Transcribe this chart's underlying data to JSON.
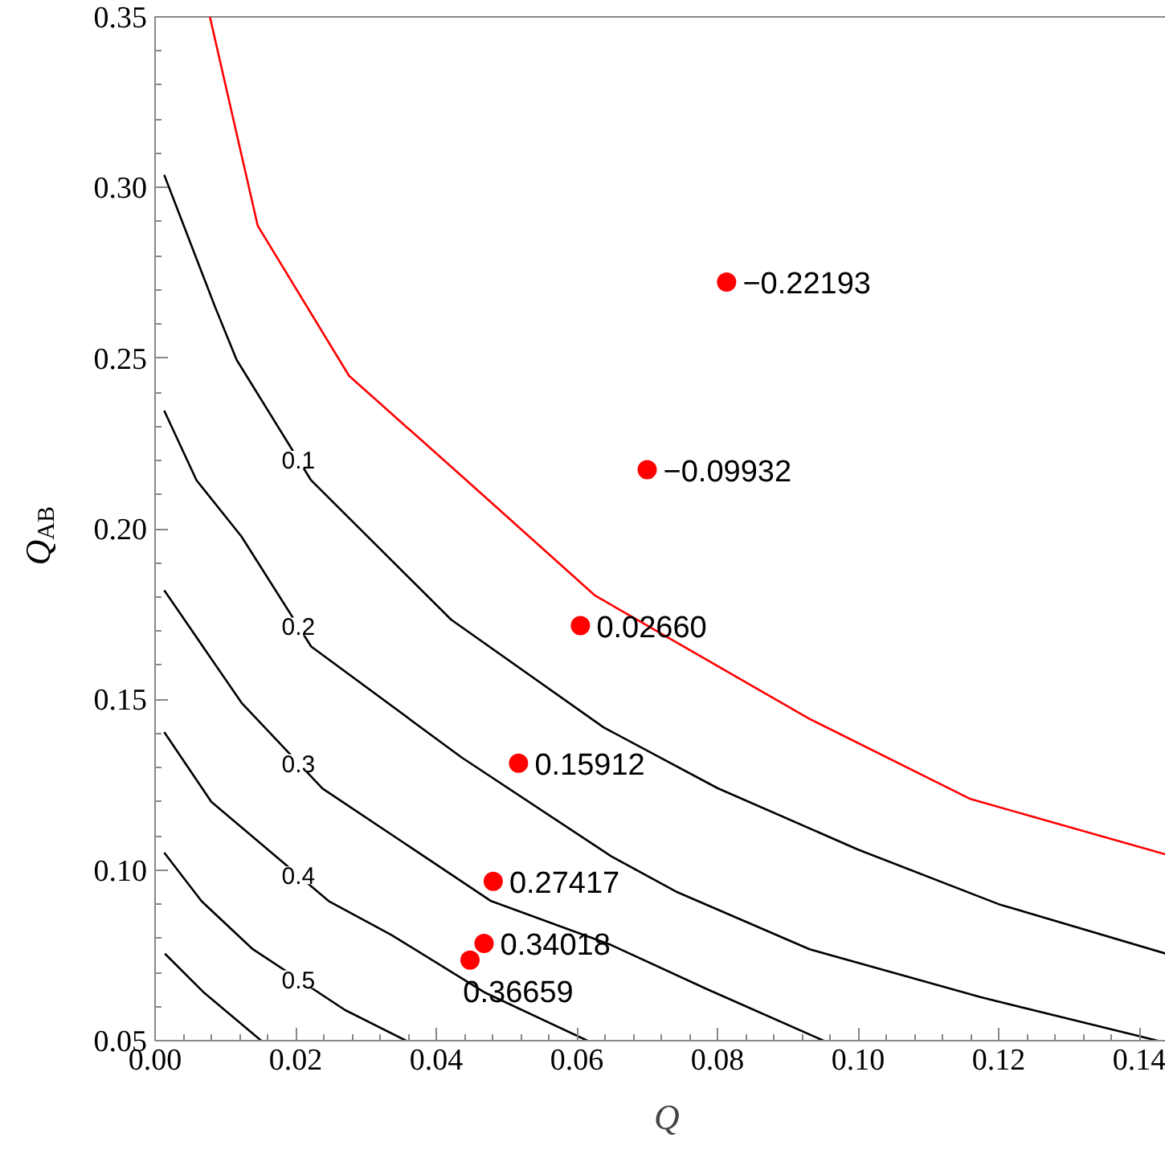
{
  "chart_data": {
    "type": "line",
    "xlabel": "Q",
    "ylabel": "Q$_{AB}$",
    "xlim": [
      0,
      0.1456
    ],
    "ylim": [
      0.05,
      0.35
    ],
    "xticks": [
      {
        "value": 0,
        "label": "0.00"
      },
      {
        "value": 0.02,
        "label": "0.02"
      },
      {
        "value": 0.04,
        "label": "0.04"
      },
      {
        "value": 0.06,
        "label": "0.06"
      },
      {
        "value": 0.08,
        "label": "0.08"
      },
      {
        "value": 0.1,
        "label": "0.10"
      },
      {
        "value": 0.12,
        "label": "0.12"
      },
      {
        "value": 0.14,
        "label": "0.14"
      }
    ],
    "yticks": [
      {
        "value": 0.05,
        "label": "0.05"
      },
      {
        "value": 0.1,
        "label": "0.10"
      },
      {
        "value": 0.15,
        "label": "0.15"
      },
      {
        "value": 0.2,
        "label": "0.20"
      },
      {
        "value": 0.25,
        "label": "0.25"
      },
      {
        "value": 0.3,
        "label": "0.30"
      },
      {
        "value": 0.35,
        "label": "0.35"
      }
    ],
    "series": [
      {
        "color": "#ff0000",
        "x": [
          0.0078,
          0.0146,
          0.0276,
          0.0443,
          0.0626,
          0.0931,
          0.116,
          0.1456
        ],
        "values": [
          0.35,
          0.2888,
          0.2448,
          0.2142,
          0.1804,
          0.1443,
          0.1208,
          0.1035
        ]
      },
      {
        "name": "0.1",
        "color": "#000000",
        "x": [
          0.0013,
          0.0085,
          0.0116,
          0.0222,
          0.0421,
          0.0638,
          0.08,
          0.1,
          0.12,
          0.1456
        ],
        "values": [
          0.3037,
          0.2652,
          0.2495,
          0.2142,
          0.1734,
          0.1418,
          0.124,
          0.106,
          0.09,
          0.0744
        ]
      },
      {
        "name": "0.2",
        "color": "#000000",
        "x": [
          0.0013,
          0.0059,
          0.0123,
          0.0222,
          0.0436,
          0.0649,
          0.0743,
          0.0931,
          0.1175,
          0.1426
        ],
        "values": [
          0.2346,
          0.2142,
          0.1977,
          0.1655,
          0.133,
          0.104,
          0.0935,
          0.0768,
          0.0627,
          0.05
        ]
      },
      {
        "name": "0.3",
        "color": "#000000",
        "x": [
          0.0013,
          0.0123,
          0.0238,
          0.0478,
          0.0649,
          0.0786,
          0.0951
        ],
        "values": [
          0.182,
          0.149,
          0.1239,
          0.0909,
          0.078,
          0.065,
          0.05
        ]
      },
      {
        "name": "0.4",
        "color": "#000000",
        "x": [
          0.0013,
          0.008,
          0.0247,
          0.0336,
          0.047,
          0.0615
        ],
        "values": [
          0.1404,
          0.12,
          0.0909,
          0.081,
          0.064,
          0.05
        ]
      },
      {
        "name": "0.5",
        "color": "#000000",
        "x": [
          0.0013,
          0.0066,
          0.0139,
          0.027,
          0.0357
        ],
        "values": [
          0.1051,
          0.0909,
          0.0768,
          0.059,
          0.05
        ]
      },
      {
        "color": "#000000",
        "x": [
          0.0014,
          0.007,
          0.0151
        ],
        "values": [
          0.0755,
          0.064,
          0.05
        ]
      },
      {
        "type": "scatter",
        "marker": "circle",
        "color": "#ff0000",
        "x": [
          0.0813,
          0.07,
          0.0605,
          0.0517,
          0.0481,
          0.0468,
          0.0448
        ],
        "values": [
          0.2723,
          0.2173,
          0.1716,
          0.1313,
          0.0967,
          0.0785,
          0.0736
        ]
      }
    ],
    "annotations": [
      {
        "text": "−0.22193",
        "x": 0.0813,
        "y": 0.2723
      },
      {
        "text": "−0.09932",
        "x": 0.07,
        "y": 0.2173
      },
      {
        "text": "0.02660",
        "x": 0.0605,
        "y": 0.1716
      },
      {
        "text": "0.15912",
        "x": 0.0517,
        "y": 0.1313
      },
      {
        "text": "0.27417",
        "x": 0.0481,
        "y": 0.0967
      },
      {
        "text": "0.34018",
        "x": 0.0468,
        "y": 0.0785
      },
      {
        "text": "0.36659",
        "x": 0.0448,
        "y": 0.0736
      }
    ]
  }
}
